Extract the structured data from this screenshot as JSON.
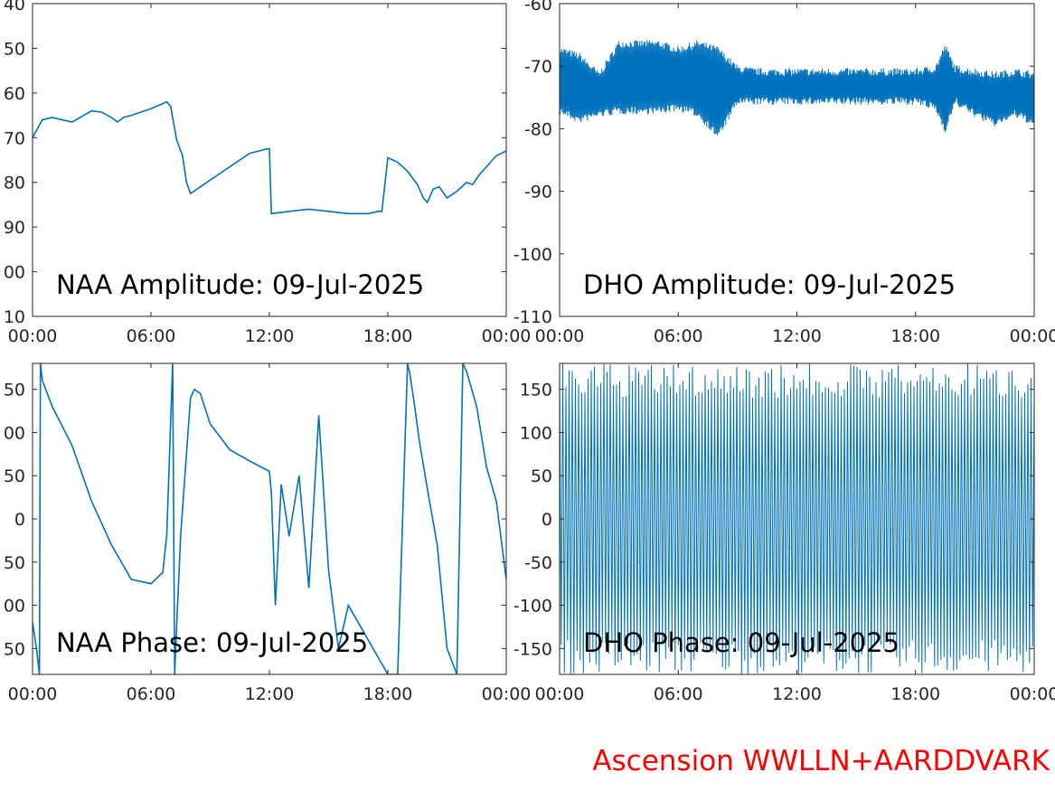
{
  "footer": {
    "text": "Ascension WWLLN+AARDDVARK",
    "color": "#ff0000"
  },
  "colors": {
    "line": "#0072bd",
    "axis": "#262626",
    "background": "#ffffff"
  },
  "chart_data": [
    {
      "type": "line",
      "title": "NAA Amplitude: 09-Jul-2025",
      "xlabel": "",
      "ylabel": "",
      "xlim": [
        "00:00",
        "00:00"
      ],
      "x_tick_labels": [
        "00:00",
        "06:00",
        "12:00",
        "18:00",
        "00:00"
      ],
      "y_tick_labels": [
        "40",
        "50",
        "60",
        "70",
        "80",
        "90",
        "00",
        "10"
      ],
      "ylim": [
        -110,
        -40
      ],
      "series": [
        {
          "x_hours": [
            0,
            0.5,
            1,
            2,
            3,
            3.5,
            4,
            4.3,
            4.6,
            5,
            6,
            6.8,
            7,
            7.3,
            7.6,
            7.8,
            8,
            8.5,
            9,
            10,
            11,
            11.9,
            12,
            12.1,
            13,
            14,
            15,
            16,
            17,
            17.5,
            17.7,
            18,
            18.5,
            19,
            19.5,
            19.8,
            20,
            20.3,
            20.6,
            21,
            21.5,
            22,
            22.3,
            22.6,
            23,
            23.5,
            24
          ],
          "y": [
            -70,
            -66,
            -65.5,
            -66.5,
            -64,
            -64.3,
            -65.5,
            -66.5,
            -65.5,
            -65,
            -63.5,
            -62,
            -63,
            -70.5,
            -74,
            -80,
            -82.5,
            -81,
            -79.5,
            -76.5,
            -73.5,
            -72.5,
            -72.5,
            -87,
            -86.5,
            -86,
            -86.5,
            -87,
            -87,
            -86.5,
            -86.5,
            -74.5,
            -75.5,
            -77.5,
            -80.5,
            -83.5,
            -84.5,
            -81.5,
            -81,
            -83.5,
            -82,
            -80,
            -80.5,
            -78.5,
            -76.5,
            -74,
            -73
          ]
        }
      ]
    },
    {
      "type": "line",
      "title": "DHO Amplitude: 09-Jul-2025",
      "xlabel": "",
      "ylabel": "",
      "xlim": [
        "00:00",
        "00:00"
      ],
      "x_tick_labels": [
        "00:00",
        "06:00",
        "12:00",
        "18:00",
        "00:00"
      ],
      "y_tick_labels": [
        "-60",
        "-70",
        "-80",
        "-90",
        "-100",
        "-110"
      ],
      "ylim": [
        -110,
        -60
      ],
      "series": [
        {
          "x_hours": [
            0,
            1,
            2,
            3,
            4,
            5,
            6,
            7,
            8,
            9,
            10,
            12,
            14,
            16,
            18,
            19,
            19.5,
            20,
            21,
            22,
            23,
            24
          ],
          "y": [
            -72.5,
            -73,
            -72.5,
            -72,
            -72,
            -72,
            -72.5,
            -72,
            -72,
            -72.5,
            -73,
            -73,
            -73,
            -73,
            -73,
            -73,
            -72.5,
            -72.5,
            -73,
            -73.5,
            -73,
            -73.5
          ],
          "band_high": [
            -68,
            -69,
            -72,
            -67,
            -67,
            -67,
            -68,
            -67,
            -68,
            -71,
            -71.5,
            -71.5,
            -71.5,
            -71.5,
            -71.5,
            -71,
            -67.5,
            -71,
            -71.5,
            -72,
            -71.5,
            -72
          ],
          "band_low": [
            -76.5,
            -78,
            -77,
            -76.5,
            -76.5,
            -76.5,
            -76,
            -77,
            -80.5,
            -75,
            -75,
            -75,
            -75,
            -75,
            -75,
            -76,
            -79.5,
            -75,
            -77,
            -78.5,
            -77,
            -78.5
          ]
        }
      ]
    },
    {
      "type": "line",
      "title": "NAA Phase: 09-Jul-2025",
      "xlabel": "",
      "ylabel": "",
      "xlim": [
        "00:00",
        "00:00"
      ],
      "x_tick_labels": [
        "00:00",
        "06:00",
        "12:00",
        "18:00",
        "00:00"
      ],
      "y_tick_labels": [
        "50",
        "00",
        "50",
        "0",
        "50",
        "00",
        "50"
      ],
      "ylim": [
        -180,
        180
      ],
      "series": [
        {
          "x_hours": [
            0,
            0.2,
            0.35,
            0.4,
            0.5,
            1,
            2,
            3,
            4,
            5,
            6,
            6.6,
            6.8,
            7.1,
            7.2,
            7.25,
            7.5,
            8,
            8.2,
            8.5,
            9,
            10,
            11,
            12,
            12.1,
            12.3,
            12.6,
            13,
            13.5,
            14,
            14.5,
            15,
            15.5,
            16,
            16.5,
            17,
            17.5,
            18,
            18.5,
            19,
            19.1,
            19.3,
            19.6,
            20,
            20.5,
            21,
            21.5,
            21.8,
            22,
            22.5,
            23,
            23.5,
            24
          ],
          "y": [
            -120,
            -150,
            -180,
            180,
            160,
            130,
            85,
            20,
            -30,
            -70,
            -75,
            -62,
            -18,
            180,
            -180,
            -150,
            -20,
            140,
            150,
            145,
            110,
            80,
            67,
            55,
            30,
            -100,
            40,
            -20,
            50,
            -80,
            120,
            -60,
            -150,
            -100,
            -120,
            -140,
            -160,
            -180,
            -180,
            180,
            170,
            140,
            90,
            35,
            -30,
            -150,
            -180,
            180,
            170,
            130,
            60,
            20,
            -70
          ]
        }
      ]
    },
    {
      "type": "line",
      "title": "DHO Phase: 09-Jul-2025",
      "xlabel": "",
      "ylabel": "",
      "xlim": [
        "00:00",
        "00:00"
      ],
      "x_tick_labels": [
        "00:00",
        "06:00",
        "12:00",
        "18:00",
        "00:00"
      ],
      "y_tick_labels": [
        "150",
        "100",
        "50",
        "0",
        "-50",
        "-100",
        "-150"
      ],
      "ylim": [
        -180,
        180
      ],
      "series": [
        {
          "description_values": "phase wraps continuously between -180 and 180 throughout the day",
          "wrap_cycles": 150
        }
      ]
    }
  ]
}
